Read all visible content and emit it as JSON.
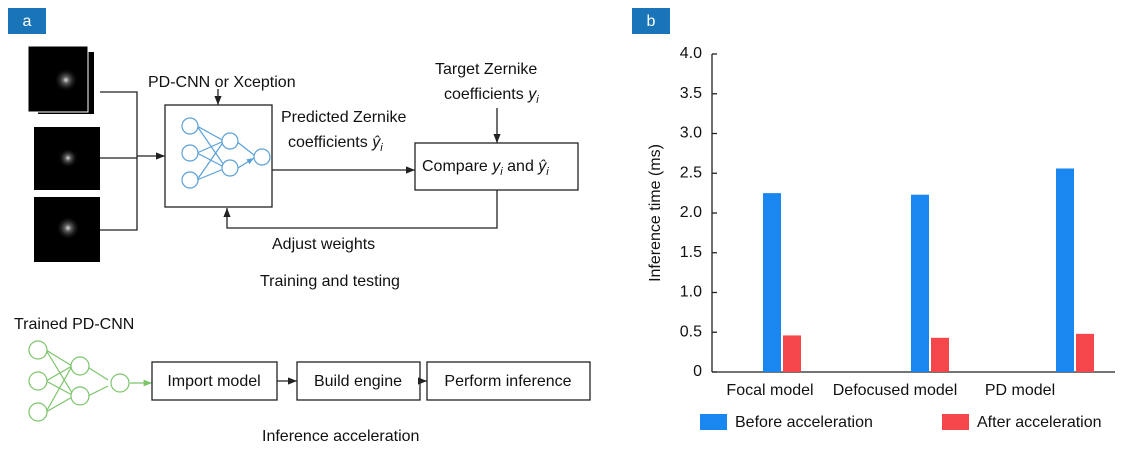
{
  "diagram": {
    "label": "a",
    "network_label": "PD-CNN or Xception",
    "predicted": {
      "line1": "Predicted Zernike",
      "line2": "coefficients ",
      "symbol": "ŷ",
      "sub": "i"
    },
    "target": {
      "line1": "Target Zernike",
      "line2": "coefficients ",
      "symbol": "y",
      "sub": "i"
    },
    "compare": {
      "parts": [
        "Compare ",
        "y",
        "i",
        " and ",
        "ŷ",
        "i"
      ]
    },
    "feedback": "Adjust weights",
    "training_caption": "Training and testing",
    "trained_label": "Trained PD-CNN",
    "steps": [
      "Import model",
      "Build engine",
      "Perform inference"
    ],
    "inference_caption": "Inference acceleration"
  },
  "chart_data": {
    "type": "bar",
    "label": "b",
    "ylabel": "Inference time (ms)",
    "categories": [
      "Focal model",
      "Defocused model",
      "PD model"
    ],
    "series": [
      {
        "name": "Before acceleration",
        "color": "#1a86f0",
        "values": [
          2.25,
          2.23,
          2.56
        ]
      },
      {
        "name": "After acceleration",
        "color": "#f5464b",
        "values": [
          0.46,
          0.43,
          0.48
        ]
      }
    ],
    "ylim": [
      0,
      4
    ],
    "yticks": [
      0,
      {
        "value": 0.5,
        "label": "0.5"
      },
      {
        "value": 1,
        "label": "1.0"
      },
      {
        "value": 1.5,
        "label": "1.5"
      },
      {
        "value": 2,
        "label": "2.0"
      },
      {
        "value": 2.5,
        "label": "2.5"
      },
      {
        "value": 3,
        "label": "3.0"
      },
      {
        "value": 3.5,
        "label": "3.5"
      },
      {
        "value": 4,
        "label": "4.0"
      }
    ],
    "legend": "bottom"
  }
}
